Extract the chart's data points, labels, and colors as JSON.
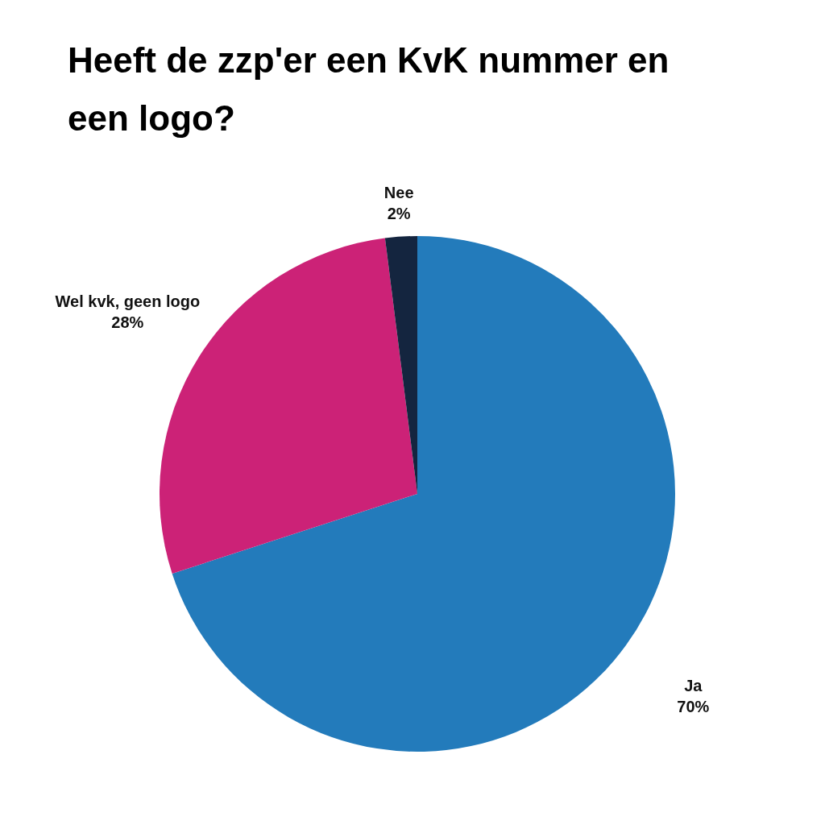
{
  "chart_data": {
    "type": "pie",
    "title": "Heeft de zzp'er een KvK nummer en een logo?",
    "categories": [
      "Ja",
      "Wel kvk, geen logo",
      "Nee"
    ],
    "values": [
      70,
      28,
      2
    ],
    "colors": [
      "#237bbb",
      "#cc2277",
      "#14253f"
    ],
    "value_labels": [
      "70%",
      "28%",
      "2%"
    ]
  }
}
